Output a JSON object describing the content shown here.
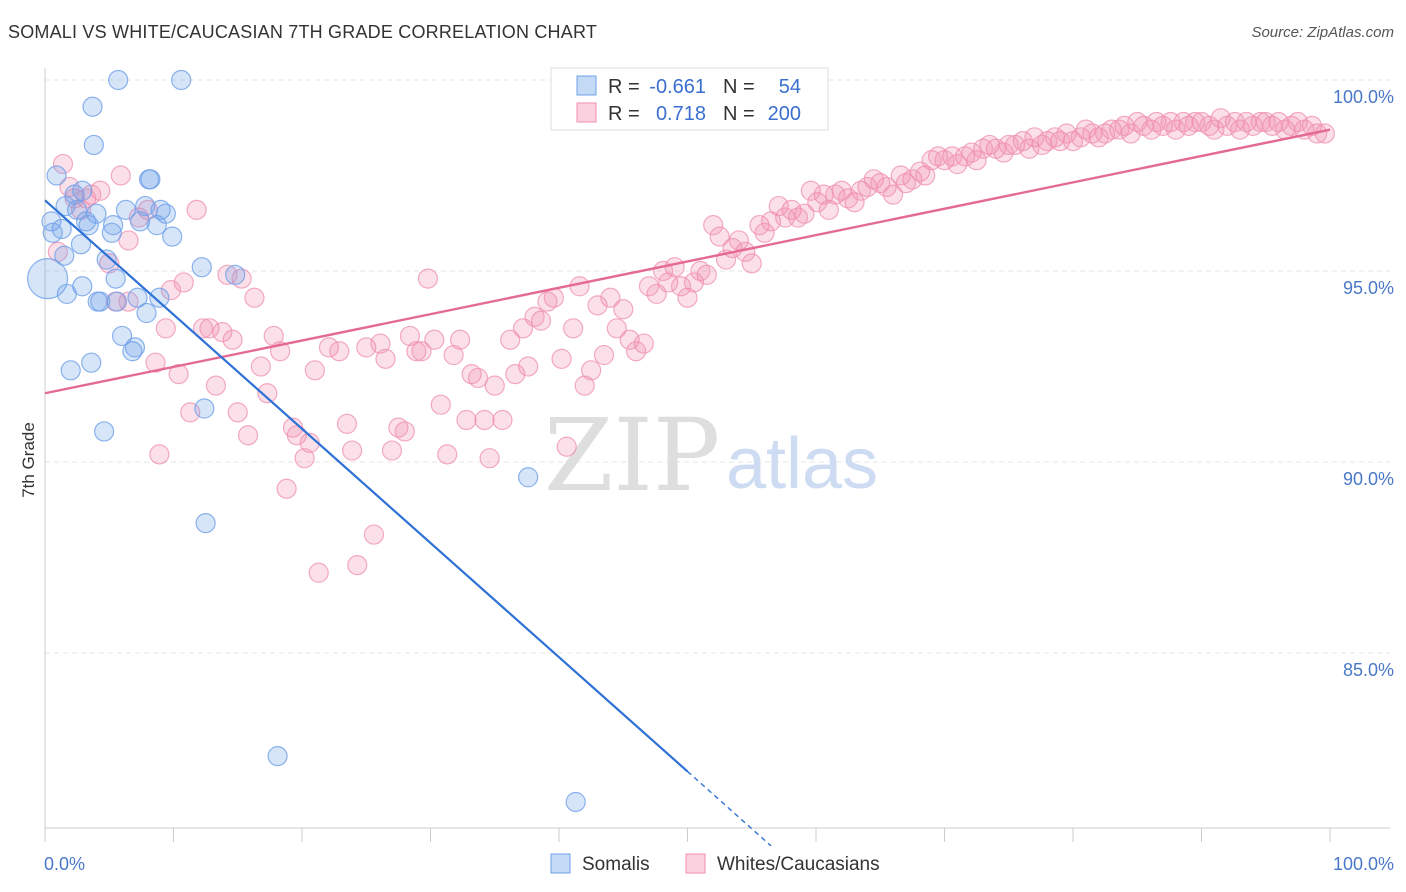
{
  "header": {
    "title": "SOMALI VS WHITE/CAUCASIAN 7TH GRADE CORRELATION CHART",
    "source": "Source: ZipAtlas.com"
  },
  "watermark": {
    "zip": "ZIP",
    "atlas": "atlas"
  },
  "legend": {
    "rows": [
      {
        "r_label": "R =",
        "r_value": "-0.661",
        "n_label": "N =",
        "n_value": "54",
        "color": "#6fa0e8"
      },
      {
        "r_label": "R =",
        "r_value": "0.718",
        "n_label": "N =",
        "n_value": "200",
        "color": "#ef8fb0"
      }
    ]
  },
  "bottom_legend": [
    {
      "label": "Somalis",
      "color": "#6fa0e8"
    },
    {
      "label": "Whites/Caucasians",
      "color": "#ef8fb0"
    }
  ],
  "chart_data": {
    "type": "scatter",
    "title": "SOMALI VS WHITE/CAUCASIAN 7TH GRADE CORRELATION CHART",
    "xlabel": "",
    "ylabel": "7th Grade",
    "xlim": [
      0,
      100
    ],
    "ylim": [
      80.0,
      101.0
    ],
    "x_tick_labels": [
      "0.0%",
      "100.0%"
    ],
    "y_ticks": [
      85,
      90,
      95,
      100
    ],
    "y_tick_labels": [
      "85.0%",
      "90.0%",
      "95.0%",
      "100.0%"
    ],
    "grid": true,
    "series": [
      {
        "name": "Somalis",
        "color": "#6fa0e8",
        "trend": {
          "x0": 0,
          "y0": 96.85,
          "x1": 50,
          "y1": 81.9,
          "dashed_to_x": 56.5,
          "dashed_to_y": 79.95
        },
        "points": [
          [
            0.2,
            94.8
          ],
          [
            0.5,
            96.3
          ],
          [
            0.6,
            96.0
          ],
          [
            0.9,
            97.5
          ],
          [
            1.3,
            96.1
          ],
          [
            1.6,
            96.7
          ],
          [
            1.5,
            95.4
          ],
          [
            1.7,
            94.4
          ],
          [
            2.0,
            92.4
          ],
          [
            2.3,
            97.0
          ],
          [
            2.5,
            96.6
          ],
          [
            2.8,
            95.7
          ],
          [
            2.9,
            94.6
          ],
          [
            2.9,
            97.1
          ],
          [
            3.2,
            96.3
          ],
          [
            3.4,
            96.2
          ],
          [
            3.6,
            92.6
          ],
          [
            3.7,
            99.3
          ],
          [
            3.8,
            98.3
          ],
          [
            4.0,
            96.5
          ],
          [
            4.1,
            94.2
          ],
          [
            4.3,
            94.2
          ],
          [
            4.6,
            90.8
          ],
          [
            4.8,
            95.3
          ],
          [
            5.2,
            96.0
          ],
          [
            5.3,
            96.2
          ],
          [
            5.5,
            94.8
          ],
          [
            5.6,
            94.2
          ],
          [
            5.7,
            100.0
          ],
          [
            6.0,
            93.3
          ],
          [
            6.3,
            96.6
          ],
          [
            6.8,
            92.9
          ],
          [
            7.0,
            93.0
          ],
          [
            7.2,
            94.3
          ],
          [
            7.4,
            96.3
          ],
          [
            7.8,
            96.7
          ],
          [
            7.9,
            93.9
          ],
          [
            8.1,
            97.4
          ],
          [
            8.2,
            97.4
          ],
          [
            8.7,
            96.2
          ],
          [
            8.9,
            94.3
          ],
          [
            9.0,
            96.6
          ],
          [
            9.4,
            96.5
          ],
          [
            9.9,
            95.9
          ],
          [
            10.6,
            100.0
          ],
          [
            12.2,
            95.1
          ],
          [
            12.4,
            91.4
          ],
          [
            12.5,
            88.4
          ],
          [
            14.8,
            94.9
          ],
          [
            18.1,
            82.3
          ],
          [
            37.6,
            89.6
          ],
          [
            41.3,
            81.1
          ]
        ]
      },
      {
        "name": "Whites/Caucasians",
        "color": "#ef8fb0",
        "trend": {
          "x0": 0,
          "y0": 91.8,
          "x1": 100,
          "y1": 98.7
        },
        "points": [
          [
            1.0,
            95.5
          ],
          [
            1.4,
            97.8
          ],
          [
            1.9,
            97.2
          ],
          [
            2.3,
            96.9
          ],
          [
            2.8,
            96.6
          ],
          [
            3.2,
            96.9
          ],
          [
            3.6,
            97.0
          ],
          [
            4.3,
            97.1
          ],
          [
            5.0,
            95.2
          ],
          [
            5.5,
            94.2
          ],
          [
            5.9,
            97.5
          ],
          [
            6.5,
            95.8
          ],
          [
            6.5,
            94.2
          ],
          [
            7.3,
            96.4
          ],
          [
            8.0,
            96.6
          ],
          [
            8.6,
            92.6
          ],
          [
            8.9,
            90.2
          ],
          [
            9.4,
            93.5
          ],
          [
            9.8,
            94.5
          ],
          [
            10.4,
            92.3
          ],
          [
            10.8,
            94.7
          ],
          [
            11.3,
            91.3
          ],
          [
            11.8,
            96.6
          ],
          [
            12.3,
            93.5
          ],
          [
            12.8,
            93.5
          ],
          [
            13.3,
            92.0
          ],
          [
            13.8,
            93.4
          ],
          [
            14.2,
            94.9
          ],
          [
            14.6,
            93.2
          ],
          [
            15.0,
            91.3
          ],
          [
            15.3,
            94.8
          ],
          [
            15.8,
            90.7
          ],
          [
            16.3,
            94.3
          ],
          [
            16.8,
            92.5
          ],
          [
            17.3,
            91.8
          ],
          [
            17.8,
            93.3
          ],
          [
            18.3,
            92.9
          ],
          [
            18.8,
            89.3
          ],
          [
            19.3,
            90.9
          ],
          [
            19.6,
            90.7
          ],
          [
            20.2,
            90.1
          ],
          [
            20.6,
            90.5
          ],
          [
            21.0,
            92.4
          ],
          [
            21.3,
            87.1
          ],
          [
            22.1,
            93.0
          ],
          [
            22.9,
            92.9
          ],
          [
            23.5,
            91.0
          ],
          [
            23.9,
            90.3
          ],
          [
            24.3,
            87.3
          ],
          [
            25.0,
            93.0
          ],
          [
            25.6,
            88.1
          ],
          [
            26.1,
            93.1
          ],
          [
            26.5,
            92.7
          ],
          [
            27.0,
            90.3
          ],
          [
            27.5,
            90.9
          ],
          [
            28.0,
            90.8
          ],
          [
            28.4,
            93.3
          ],
          [
            28.9,
            92.9
          ],
          [
            29.3,
            92.9
          ],
          [
            29.8,
            94.8
          ],
          [
            30.3,
            93.2
          ],
          [
            30.8,
            91.5
          ],
          [
            31.3,
            90.2
          ],
          [
            31.8,
            92.8
          ],
          [
            32.3,
            93.2
          ],
          [
            32.8,
            91.1
          ],
          [
            33.2,
            92.3
          ],
          [
            33.7,
            92.2
          ],
          [
            34.2,
            91.1
          ],
          [
            34.6,
            90.1
          ],
          [
            35.0,
            92.0
          ],
          [
            35.6,
            91.1
          ],
          [
            36.2,
            93.2
          ],
          [
            36.6,
            92.3
          ],
          [
            37.2,
            93.5
          ],
          [
            37.6,
            92.5
          ],
          [
            38.1,
            93.8
          ],
          [
            38.6,
            93.7
          ],
          [
            39.1,
            94.2
          ],
          [
            39.6,
            94.3
          ],
          [
            40.2,
            92.7
          ],
          [
            40.6,
            90.4
          ],
          [
            41.1,
            93.5
          ],
          [
            41.6,
            94.6
          ],
          [
            42.0,
            92.0
          ],
          [
            42.5,
            92.4
          ],
          [
            43.0,
            94.1
          ],
          [
            43.5,
            92.8
          ],
          [
            44.0,
            94.3
          ],
          [
            44.5,
            93.5
          ],
          [
            45.0,
            94.0
          ],
          [
            45.5,
            93.2
          ],
          [
            46.0,
            92.9
          ],
          [
            46.6,
            93.1
          ],
          [
            47.0,
            94.6
          ],
          [
            47.6,
            94.4
          ],
          [
            48.1,
            95.0
          ],
          [
            48.5,
            94.7
          ],
          [
            49.0,
            95.1
          ],
          [
            49.5,
            94.6
          ],
          [
            50.0,
            94.3
          ],
          [
            50.5,
            94.7
          ],
          [
            51.0,
            95.0
          ],
          [
            51.5,
            94.9
          ],
          [
            52.0,
            96.2
          ],
          [
            52.5,
            95.9
          ],
          [
            53.0,
            95.3
          ],
          [
            53.5,
            95.6
          ],
          [
            54.0,
            95.8
          ],
          [
            54.5,
            95.5
          ],
          [
            55.0,
            95.2
          ],
          [
            55.6,
            96.2
          ],
          [
            56.0,
            96.0
          ],
          [
            56.5,
            96.3
          ],
          [
            57.1,
            96.7
          ],
          [
            57.6,
            96.4
          ],
          [
            58.1,
            96.6
          ],
          [
            58.6,
            96.4
          ],
          [
            59.1,
            96.5
          ],
          [
            59.6,
            97.1
          ],
          [
            60.1,
            96.8
          ],
          [
            60.6,
            97.0
          ],
          [
            61.0,
            96.6
          ],
          [
            61.5,
            97.0
          ],
          [
            62.0,
            97.1
          ],
          [
            62.5,
            96.9
          ],
          [
            63.0,
            96.8
          ],
          [
            63.5,
            97.1
          ],
          [
            64.0,
            97.2
          ],
          [
            64.5,
            97.4
          ],
          [
            65.0,
            97.3
          ],
          [
            65.5,
            97.2
          ],
          [
            66.0,
            97.0
          ],
          [
            66.6,
            97.5
          ],
          [
            67.0,
            97.3
          ],
          [
            67.5,
            97.4
          ],
          [
            68.1,
            97.6
          ],
          [
            68.5,
            97.5
          ],
          [
            69.0,
            97.9
          ],
          [
            69.5,
            98.0
          ],
          [
            70.0,
            97.9
          ],
          [
            70.6,
            98.0
          ],
          [
            71.0,
            97.8
          ],
          [
            71.6,
            98.0
          ],
          [
            72.1,
            98.1
          ],
          [
            72.5,
            97.9
          ],
          [
            73.0,
            98.2
          ],
          [
            73.5,
            98.3
          ],
          [
            74.0,
            98.2
          ],
          [
            74.6,
            98.1
          ],
          [
            75.0,
            98.3
          ],
          [
            75.5,
            98.3
          ],
          [
            76.1,
            98.4
          ],
          [
            76.6,
            98.2
          ],
          [
            77.0,
            98.5
          ],
          [
            77.6,
            98.3
          ],
          [
            78.0,
            98.4
          ],
          [
            78.6,
            98.5
          ],
          [
            79.0,
            98.4
          ],
          [
            79.5,
            98.6
          ],
          [
            80.0,
            98.4
          ],
          [
            80.6,
            98.5
          ],
          [
            81.0,
            98.7
          ],
          [
            81.5,
            98.6
          ],
          [
            82.0,
            98.5
          ],
          [
            82.5,
            98.6
          ],
          [
            83.0,
            98.7
          ],
          [
            83.6,
            98.7
          ],
          [
            84.0,
            98.8
          ],
          [
            84.5,
            98.6
          ],
          [
            85.0,
            98.9
          ],
          [
            85.5,
            98.8
          ],
          [
            86.1,
            98.7
          ],
          [
            86.5,
            98.9
          ],
          [
            87.0,
            98.8
          ],
          [
            87.6,
            98.9
          ],
          [
            88.0,
            98.7
          ],
          [
            88.6,
            98.9
          ],
          [
            89.0,
            98.8
          ],
          [
            89.5,
            98.9
          ],
          [
            90.0,
            98.9
          ],
          [
            90.6,
            98.8
          ],
          [
            91.0,
            98.7
          ],
          [
            91.5,
            99.0
          ],
          [
            92.0,
            98.8
          ],
          [
            92.6,
            98.9
          ],
          [
            93.0,
            98.7
          ],
          [
            93.5,
            98.9
          ],
          [
            94.0,
            98.8
          ],
          [
            94.6,
            98.9
          ],
          [
            95.0,
            98.9
          ],
          [
            95.5,
            98.8
          ],
          [
            96.0,
            98.9
          ],
          [
            96.5,
            98.7
          ],
          [
            97.0,
            98.8
          ],
          [
            97.5,
            98.9
          ],
          [
            98.0,
            98.7
          ],
          [
            98.6,
            98.8
          ],
          [
            99.0,
            98.6
          ],
          [
            99.6,
            98.6
          ]
        ]
      }
    ]
  }
}
